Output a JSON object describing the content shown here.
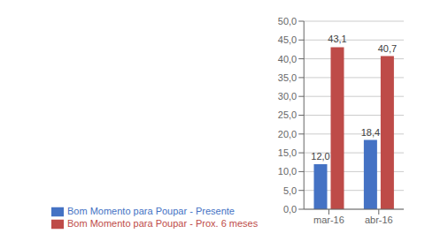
{
  "chart_data": {
    "type": "bar",
    "categories": [
      "mar-16",
      "abr-16"
    ],
    "series": [
      {
        "name": "Bom Momento para Poupar - Presente",
        "color": "#4472C4",
        "values": [
          12.0,
          18.4
        ],
        "value_labels": [
          "12,0",
          "18,4"
        ]
      },
      {
        "name": "Bom Momento para Poupar - Prox. 6 meses",
        "color": "#BE4B48",
        "values": [
          43.1,
          40.7
        ],
        "value_labels": [
          "43,1",
          "40,7"
        ]
      }
    ],
    "ylim": [
      0,
      50
    ],
    "yticks": [
      {
        "value": 0.0,
        "label": "0,0"
      },
      {
        "value": 5.0,
        "label": "5,0"
      },
      {
        "value": 10.0,
        "label": "10,0"
      },
      {
        "value": 15.0,
        "label": "15,0"
      },
      {
        "value": 20.0,
        "label": "20,0"
      },
      {
        "value": 25.0,
        "label": "25,0"
      },
      {
        "value": 30.0,
        "label": "30,0"
      },
      {
        "value": 35.0,
        "label": "35,0"
      },
      {
        "value": 40.0,
        "label": "40,0"
      },
      {
        "value": 45.0,
        "label": "45,0"
      },
      {
        "value": 50.0,
        "label": "50,0"
      }
    ],
    "grid": true,
    "data_labels": true,
    "legend": "bottom"
  }
}
